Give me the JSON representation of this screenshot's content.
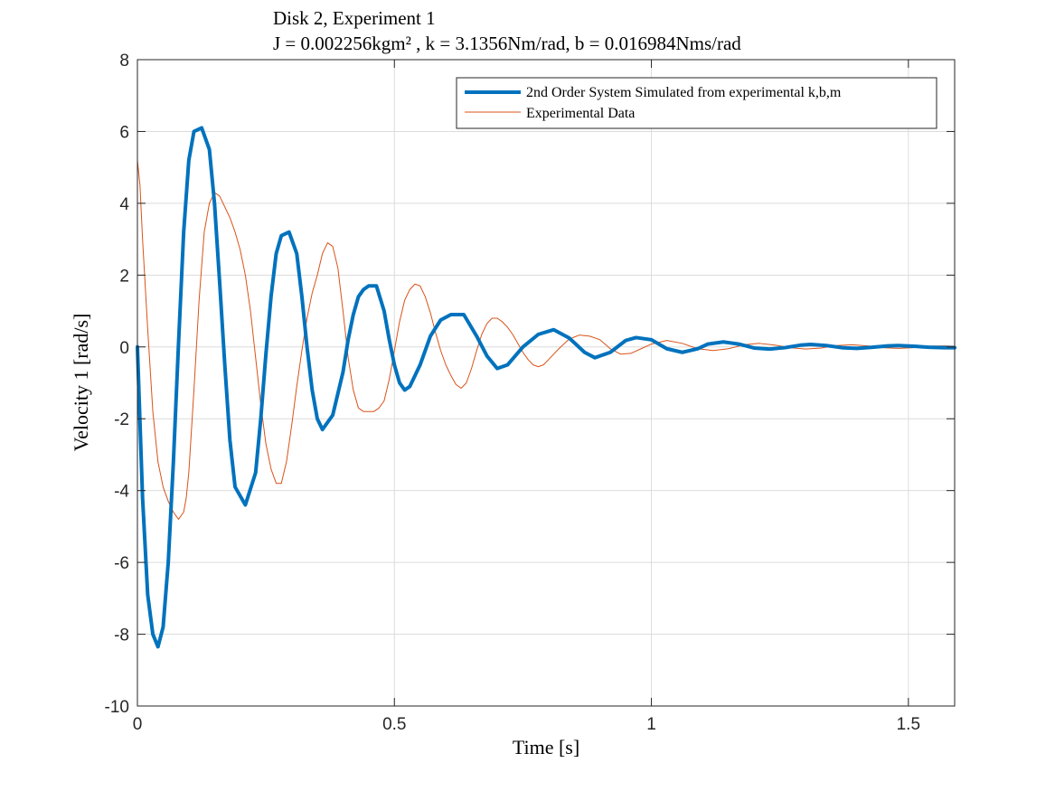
{
  "chart_data": {
    "type": "line",
    "title": {
      "line1": "Disk 2, Experiment 1",
      "line2": "J = 0.002256kgm² , k = 3.1356Nm/rad, b = 0.016984Nms/rad"
    },
    "xlabel": "Time [s]",
    "ylabel": "Velocity 1 [rad/s]",
    "xlim": [
      0,
      1.59
    ],
    "ylim": [
      -10,
      8
    ],
    "xticks": [
      0,
      0.5,
      1,
      1.5
    ],
    "xtick_labels": [
      "0",
      "0.5",
      "1",
      "1.5"
    ],
    "yticks": [
      -10,
      -8,
      -6,
      -4,
      -2,
      0,
      2,
      4,
      6,
      8
    ],
    "ytick_labels": [
      "-10",
      "-8",
      "-6",
      "-4",
      "-2",
      "0",
      "2",
      "4",
      "6",
      "8"
    ],
    "grid": true,
    "legend_position": "top-right",
    "series": [
      {
        "name": "2nd Order System Simulated from experimental k,b,m",
        "color": "#0072BD",
        "line_width": "thick",
        "x": [
          0,
          0.01,
          0.02,
          0.03,
          0.04,
          0.05,
          0.06,
          0.07,
          0.08,
          0.09,
          0.1,
          0.11,
          0.125,
          0.14,
          0.15,
          0.16,
          0.17,
          0.18,
          0.19,
          0.21,
          0.23,
          0.24,
          0.25,
          0.26,
          0.27,
          0.28,
          0.295,
          0.31,
          0.32,
          0.33,
          0.34,
          0.35,
          0.36,
          0.38,
          0.4,
          0.41,
          0.42,
          0.43,
          0.44,
          0.45,
          0.465,
          0.48,
          0.49,
          0.5,
          0.51,
          0.52,
          0.53,
          0.55,
          0.57,
          0.59,
          0.61,
          0.635,
          0.66,
          0.68,
          0.7,
          0.72,
          0.75,
          0.78,
          0.81,
          0.84,
          0.87,
          0.89,
          0.92,
          0.95,
          0.97,
          1.0,
          1.03,
          1.06,
          1.09,
          1.11,
          1.14,
          1.17,
          1.2,
          1.23,
          1.26,
          1.29,
          1.31,
          1.34,
          1.37,
          1.4,
          1.43,
          1.46,
          1.48,
          1.51,
          1.54,
          1.57,
          1.59
        ],
        "y": [
          0,
          -4.2,
          -6.9,
          -8.0,
          -8.35,
          -7.8,
          -6.0,
          -3.2,
          0.1,
          3.2,
          5.2,
          6.0,
          6.1,
          5.5,
          4.0,
          1.8,
          -0.5,
          -2.6,
          -3.9,
          -4.4,
          -3.5,
          -2.0,
          -0.2,
          1.4,
          2.6,
          3.1,
          3.2,
          2.6,
          1.4,
          0.0,
          -1.2,
          -2.0,
          -2.3,
          -1.9,
          -0.7,
          0.2,
          0.9,
          1.4,
          1.6,
          1.7,
          1.7,
          1.0,
          0.2,
          -0.5,
          -1.0,
          -1.2,
          -1.1,
          -0.5,
          0.3,
          0.75,
          0.9,
          0.9,
          0.3,
          -0.25,
          -0.6,
          -0.5,
          0.0,
          0.35,
          0.48,
          0.25,
          -0.15,
          -0.3,
          -0.15,
          0.18,
          0.26,
          0.2,
          -0.05,
          -0.15,
          -0.05,
          0.08,
          0.14,
          0.08,
          -0.03,
          -0.06,
          -0.02,
          0.05,
          0.07,
          0.04,
          -0.02,
          -0.04,
          -0.01,
          0.03,
          0.04,
          0.02,
          -0.01,
          -0.02,
          -0.02
        ]
      },
      {
        "name": "Experimental Data",
        "color": "#D95319",
        "line_width": "thin",
        "x": [
          0,
          0.005,
          0.01,
          0.02,
          0.03,
          0.04,
          0.05,
          0.06,
          0.07,
          0.08,
          0.09,
          0.095,
          0.1,
          0.11,
          0.12,
          0.13,
          0.14,
          0.15,
          0.16,
          0.17,
          0.18,
          0.19,
          0.2,
          0.21,
          0.22,
          0.23,
          0.24,
          0.25,
          0.26,
          0.27,
          0.28,
          0.29,
          0.3,
          0.31,
          0.32,
          0.33,
          0.34,
          0.35,
          0.36,
          0.37,
          0.38,
          0.39,
          0.4,
          0.41,
          0.42,
          0.43,
          0.44,
          0.45,
          0.46,
          0.47,
          0.48,
          0.49,
          0.5,
          0.51,
          0.52,
          0.53,
          0.54,
          0.55,
          0.56,
          0.57,
          0.58,
          0.59,
          0.6,
          0.61,
          0.62,
          0.63,
          0.64,
          0.65,
          0.66,
          0.67,
          0.68,
          0.69,
          0.7,
          0.71,
          0.72,
          0.73,
          0.74,
          0.75,
          0.76,
          0.77,
          0.78,
          0.79,
          0.8,
          0.82,
          0.84,
          0.86,
          0.88,
          0.9,
          0.92,
          0.94,
          0.96,
          0.98,
          1.0,
          1.03,
          1.06,
          1.09,
          1.12,
          1.15,
          1.18,
          1.21,
          1.24,
          1.27,
          1.3,
          1.33,
          1.36,
          1.39,
          1.42,
          1.45,
          1.48,
          1.51,
          1.54,
          1.57,
          1.59
        ],
        "y": [
          5.2,
          4.5,
          3.0,
          0.5,
          -1.8,
          -3.2,
          -3.9,
          -4.3,
          -4.6,
          -4.8,
          -4.6,
          -4.2,
          -3.5,
          -1.2,
          1.3,
          3.2,
          4.0,
          4.3,
          4.2,
          3.9,
          3.6,
          3.2,
          2.7,
          2.0,
          1.0,
          -0.3,
          -1.6,
          -2.7,
          -3.4,
          -3.8,
          -3.8,
          -3.2,
          -2.2,
          -1.1,
          -0.1,
          0.8,
          1.5,
          2.0,
          2.6,
          2.9,
          2.8,
          2.2,
          1.0,
          -0.3,
          -1.2,
          -1.7,
          -1.8,
          -1.8,
          -1.8,
          -1.7,
          -1.5,
          -0.9,
          -0.1,
          0.7,
          1.3,
          1.6,
          1.75,
          1.7,
          1.4,
          0.95,
          0.4,
          -0.1,
          -0.5,
          -0.8,
          -1.05,
          -1.15,
          -1.0,
          -0.6,
          -0.1,
          0.35,
          0.65,
          0.8,
          0.8,
          0.7,
          0.55,
          0.35,
          0.1,
          -0.15,
          -0.35,
          -0.5,
          -0.55,
          -0.5,
          -0.35,
          -0.05,
          0.22,
          0.33,
          0.3,
          0.2,
          -0.05,
          -0.2,
          -0.18,
          -0.05,
          0.08,
          0.18,
          0.1,
          -0.05,
          -0.1,
          -0.05,
          0.06,
          0.1,
          0.05,
          -0.02,
          -0.06,
          -0.03,
          0.04,
          0.06,
          0.03,
          -0.02,
          -0.04,
          -0.02,
          0.02,
          0.03,
          0.02
        ]
      }
    ]
  }
}
